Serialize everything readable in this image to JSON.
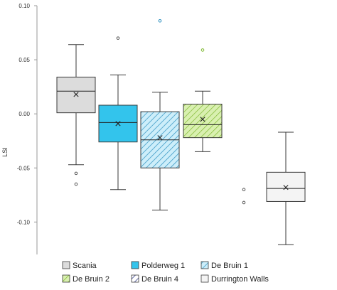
{
  "chart_data": {
    "type": "box",
    "ylabel": "LSI",
    "ylim": [
      -0.13,
      0.1
    ],
    "yticks": [
      0.1,
      0.05,
      0.0,
      -0.05,
      -0.1
    ],
    "ytick_labels": [
      "0.10",
      "0.05",
      "0.00",
      "-0.05",
      "-0.10"
    ],
    "grid": false,
    "legend_position": "bottom",
    "series": [
      {
        "name": "Scania",
        "fill": "#dcdcdc",
        "hatch": false,
        "min": -0.047,
        "q1": 0.001,
        "median": 0.021,
        "q3": 0.034,
        "max": 0.064,
        "mean": 0.018,
        "outliers": [
          -0.055,
          -0.065
        ]
      },
      {
        "name": "Polderweg 1",
        "fill": "#33c4ec",
        "hatch": false,
        "min": -0.07,
        "q1": -0.026,
        "median": -0.008,
        "q3": 0.008,
        "max": 0.036,
        "mean": -0.009,
        "outliers": [
          0.07
        ]
      },
      {
        "name": "De Bruin 1",
        "fill": "#cdeefa",
        "hatch": true,
        "hatch_color": "#2b8fbf",
        "min": -0.089,
        "q1": -0.05,
        "median": -0.024,
        "q3": 0.002,
        "max": 0.02,
        "mean": -0.022,
        "outliers": [
          0.086
        ]
      },
      {
        "name": "De Bruin 2",
        "fill": "#d9f0b0",
        "hatch": true,
        "hatch_color": "#7fb832",
        "min": -0.035,
        "q1": -0.022,
        "median": -0.01,
        "q3": 0.009,
        "max": 0.021,
        "mean": -0.005,
        "outliers": [
          0.059
        ]
      },
      {
        "name": "De Bruin 4",
        "fill": "#ffffff",
        "hatch": true,
        "hatch_color": "#1f2a80",
        "min": null,
        "q1": null,
        "median": null,
        "q3": null,
        "max": null,
        "mean": null,
        "outliers": [
          -0.07,
          -0.082
        ]
      },
      {
        "name": "Durrington Walls",
        "fill": "#f4f4f4",
        "hatch": false,
        "min": -0.121,
        "q1": -0.081,
        "median": -0.069,
        "q3": -0.054,
        "max": -0.017,
        "mean": -0.068,
        "outliers": []
      }
    ]
  }
}
